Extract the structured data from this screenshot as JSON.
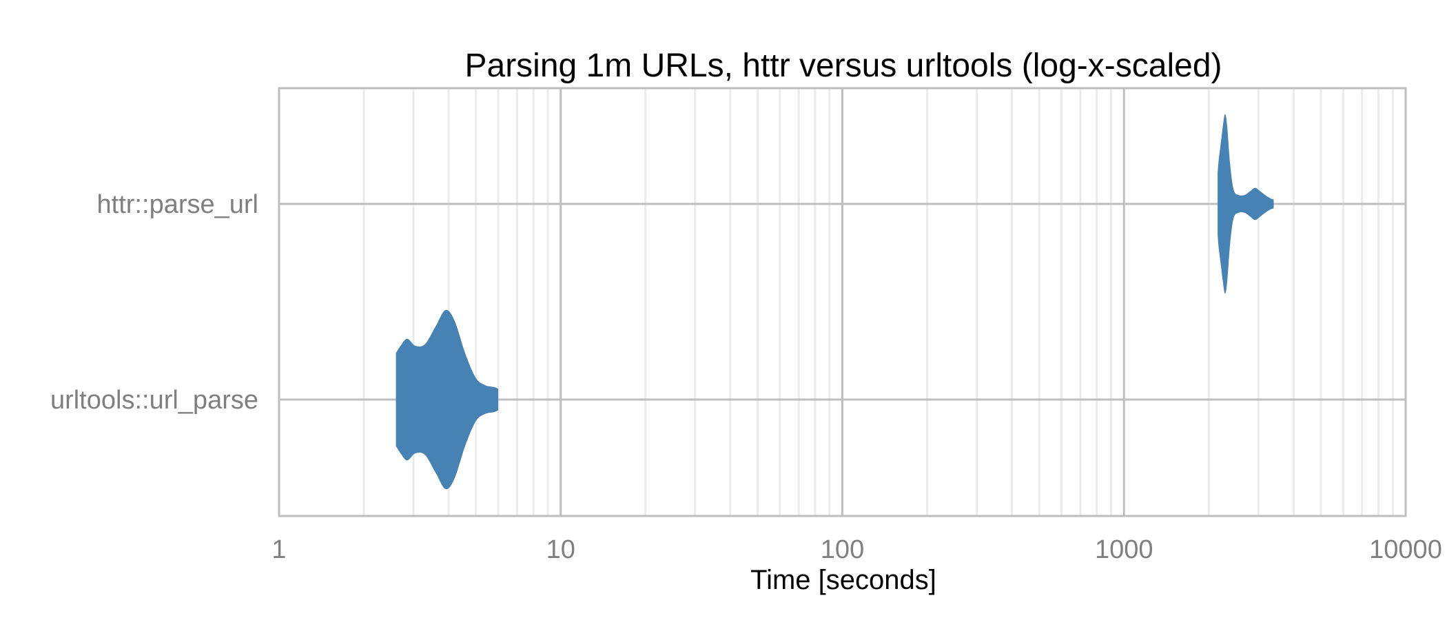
{
  "chart_data": {
    "type": "violin",
    "title": "Parsing 1m URLs, httr versus urltools (log-x-scaled)",
    "xlabel": "Time [seconds]",
    "ylabel": "",
    "x_scale": "log10",
    "xlim": [
      1,
      10000
    ],
    "x_ticks": [
      1,
      10,
      100,
      1000,
      10000
    ],
    "x_tick_labels": [
      "1",
      "10",
      "100",
      "1000",
      "10000"
    ],
    "categories": [
      "httr::parse_url",
      "urltools::url_parse"
    ],
    "series": [
      {
        "category": "httr::parse_url",
        "min": 2150,
        "max": 3400,
        "density_profile": [
          [
            2150,
            0.35
          ],
          [
            2170,
            0.5
          ],
          [
            2200,
            0.65
          ],
          [
            2240,
            0.85
          ],
          [
            2280,
            1.0
          ],
          [
            2320,
            0.9
          ],
          [
            2380,
            0.45
          ],
          [
            2450,
            0.16
          ],
          [
            2550,
            0.1
          ],
          [
            2680,
            0.1
          ],
          [
            2800,
            0.14
          ],
          [
            2920,
            0.18
          ],
          [
            3050,
            0.14
          ],
          [
            3200,
            0.09
          ],
          [
            3320,
            0.06
          ],
          [
            3400,
            0.05
          ]
        ]
      },
      {
        "category": "urltools::url_parse",
        "min": 2.6,
        "max": 6.0,
        "density_profile": [
          [
            2.6,
            0.52
          ],
          [
            2.7,
            0.6
          ],
          [
            2.85,
            0.68
          ],
          [
            3.05,
            0.6
          ],
          [
            3.3,
            0.62
          ],
          [
            3.6,
            0.82
          ],
          [
            3.9,
            1.0
          ],
          [
            4.2,
            0.88
          ],
          [
            4.6,
            0.5
          ],
          [
            5.0,
            0.24
          ],
          [
            5.4,
            0.16
          ],
          [
            5.8,
            0.14
          ],
          [
            6.0,
            0.12
          ]
        ]
      }
    ],
    "fill_color": "#4682b4",
    "grid": true,
    "grid_color": "#bebebe",
    "minor_grid_color": "#ebebeb",
    "legend": "none"
  }
}
